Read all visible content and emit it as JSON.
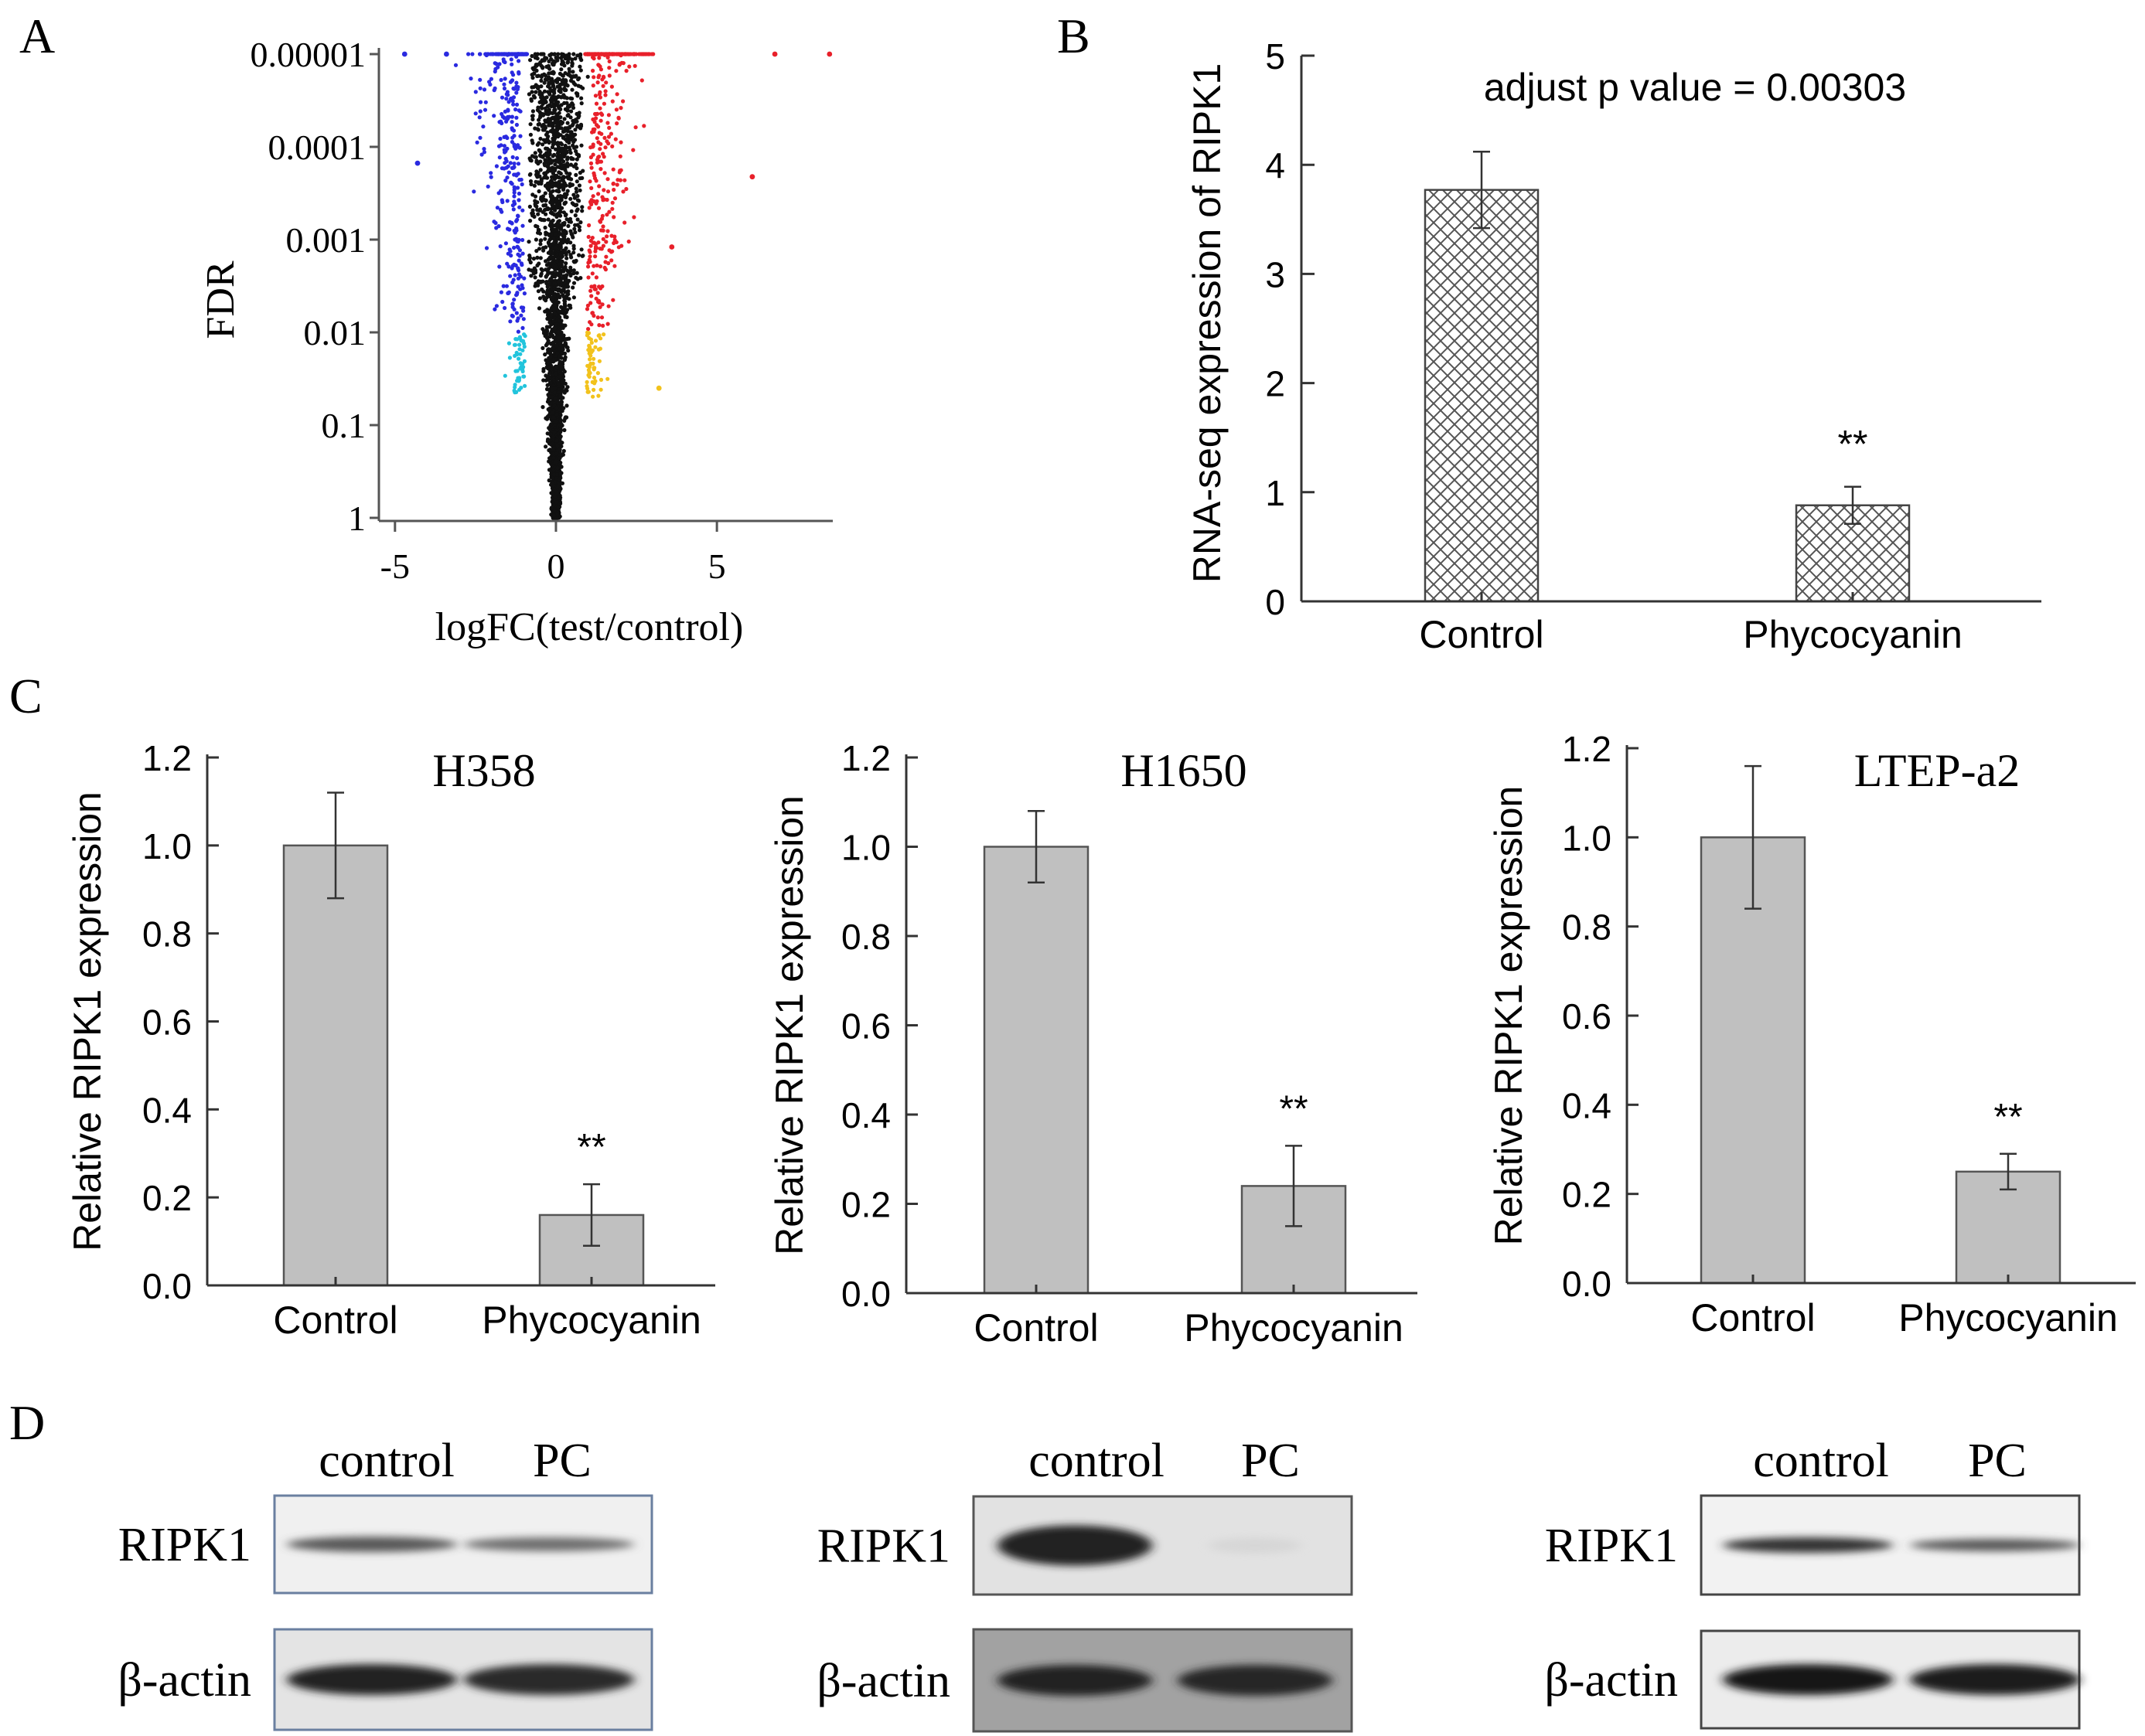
{
  "panel_labels": {
    "a": "A",
    "b": "B",
    "c": "C",
    "d": "D"
  },
  "colors": {
    "down": "#2a2ae0",
    "up": "#e8202a",
    "down_minor": "#22c4dc",
    "up_minor": "#f2c21c",
    "ns": "#111111",
    "bar_gray": "#c0c0c0",
    "bar_hatch": "#555555"
  },
  "chart_data": [
    {
      "id": "A",
      "type": "scatter",
      "subtype": "volcano",
      "xlabel": "logFC(test/control)",
      "ylabel": "FDR",
      "x_ticks": [
        "-5",
        "0",
        "5"
      ],
      "x_tick_values": [
        -5,
        0,
        5
      ],
      "xlim": [
        -5.5,
        8.6
      ],
      "y_ticks": [
        "0.00001",
        "0.0001",
        "0.001",
        "0.01",
        "0.1",
        "1"
      ],
      "y_tick_values": [
        1e-05,
        0.0001,
        0.001,
        0.01,
        0.1,
        1
      ],
      "y_scale": "log-reversed",
      "groups": [
        {
          "name": "down FDR<0.01",
          "color_key": "down"
        },
        {
          "name": "up FDR<0.01",
          "color_key": "up"
        },
        {
          "name": "down 0.01-0.05",
          "color_key": "down_minor"
        },
        {
          "name": "up 0.01-0.05",
          "color_key": "up_minor"
        },
        {
          "name": "not significant",
          "color_key": "ns"
        }
      ],
      "outlier_points": [
        {
          "x": -4.7,
          "fdr": 1e-05,
          "group": "down"
        },
        {
          "x": -4.3,
          "fdr": 0.00015,
          "group": "down"
        },
        {
          "x": -3.4,
          "fdr": 1e-05,
          "group": "down"
        },
        {
          "x": 6.1,
          "fdr": 0.00021,
          "group": "up"
        },
        {
          "x": 8.5,
          "fdr": 1e-05,
          "group": "up"
        },
        {
          "x": 6.8,
          "fdr": 1e-05,
          "group": "up"
        },
        {
          "x": 3.2,
          "fdr": 0.04,
          "group": "up_minor"
        },
        {
          "x": 3.6,
          "fdr": 0.0012,
          "group": "up"
        }
      ]
    },
    {
      "id": "B",
      "type": "bar",
      "hatch": "crosshatch",
      "categories": [
        "Control",
        "Phycocyanin"
      ],
      "values": [
        3.77,
        0.88
      ],
      "errors": [
        0.35,
        0.17
      ],
      "ylabel": "RNA-seq expression of RIPK1",
      "ylim": [
        0,
        5
      ],
      "y_ticks": [
        "0",
        "1",
        "2",
        "3",
        "4",
        "5"
      ],
      "y_tick_values": [
        0,
        1,
        2,
        3,
        4,
        5
      ],
      "annotation": "adjust p value = 0.00303",
      "significance": [
        "",
        "**"
      ]
    },
    {
      "id": "C1",
      "type": "bar",
      "title": "H358",
      "categories": [
        "Control",
        "Phycocyanin"
      ],
      "values": [
        1.0,
        0.16
      ],
      "errors": [
        0.12,
        0.07
      ],
      "ylabel": "Relative RIPK1 expression",
      "ylim": [
        0,
        1.2
      ],
      "y_ticks": [
        "0.0",
        "0.2",
        "0.4",
        "0.6",
        "0.8",
        "1.0",
        "1.2"
      ],
      "y_tick_values": [
        0,
        0.2,
        0.4,
        0.6,
        0.8,
        1.0,
        1.2
      ],
      "significance": [
        "",
        "**"
      ]
    },
    {
      "id": "C2",
      "type": "bar",
      "title": "H1650",
      "categories": [
        "Control",
        "Phycocyanin"
      ],
      "values": [
        1.0,
        0.24
      ],
      "errors": [
        0.08,
        0.09
      ],
      "ylabel": "Relative RIPK1 expression",
      "ylim": [
        0,
        1.2
      ],
      "y_ticks": [
        "0.0",
        "0.2",
        "0.4",
        "0.6",
        "0.8",
        "1.0",
        "1.2"
      ],
      "y_tick_values": [
        0,
        0.2,
        0.4,
        0.6,
        0.8,
        1.0,
        1.2
      ],
      "significance": [
        "",
        "**"
      ]
    },
    {
      "id": "C3",
      "type": "bar",
      "title": "LTEP-a2",
      "categories": [
        "Control",
        "Phycocyanin"
      ],
      "values": [
        1.0,
        0.25
      ],
      "errors": [
        0.16,
        0.04
      ],
      "ylabel": "Relative RIPK1 expression",
      "ylim": [
        0,
        1.2
      ],
      "y_ticks": [
        "0.0",
        "0.2",
        "0.4",
        "0.6",
        "0.8",
        "1.0",
        "1.2"
      ],
      "y_tick_values": [
        0,
        0.2,
        0.4,
        0.6,
        0.8,
        1.0,
        1.2
      ],
      "significance": [
        "",
        "**"
      ]
    }
  ],
  "western_blots": [
    {
      "id": "D1",
      "lanes": [
        "control",
        "PC"
      ],
      "rows": [
        {
          "label": "RIPK1",
          "band_intensity": [
            0.55,
            0.4
          ],
          "bg": "#f0f0f0"
        },
        {
          "label": "β-actin",
          "band_intensity": [
            0.9,
            0.85
          ],
          "bg": "#e4e4e4"
        }
      ]
    },
    {
      "id": "D2",
      "lanes": [
        "control",
        "PC"
      ],
      "rows": [
        {
          "label": "RIPK1",
          "band_intensity": [
            0.92,
            0.04
          ],
          "bg": "#e2e2e2"
        },
        {
          "label": "β-actin",
          "band_intensity": [
            0.9,
            0.88
          ],
          "bg": "#a2a2a2"
        }
      ]
    },
    {
      "id": "D3",
      "lanes": [
        "control",
        "PC"
      ],
      "rows": [
        {
          "label": "RIPK1",
          "band_intensity": [
            0.8,
            0.55
          ],
          "bg": "#f2f2f2"
        },
        {
          "label": "β-actin",
          "band_intensity": [
            0.97,
            0.93
          ],
          "bg": "#ececec"
        }
      ]
    }
  ]
}
